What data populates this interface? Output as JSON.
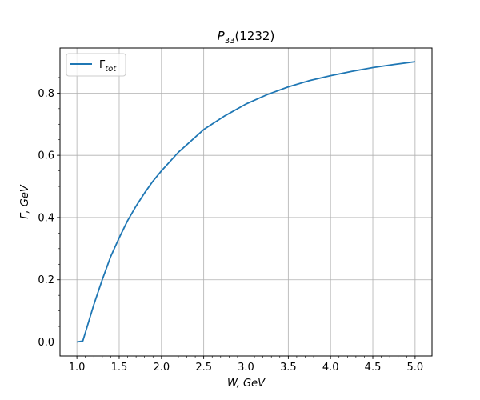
{
  "chart_data": {
    "type": "line",
    "title": "P33(1232)",
    "title_main": "P",
    "title_sub": "33",
    "title_rest": "(1232)",
    "xlabel": "W, GeV",
    "ylabel": "Γ,  GeV",
    "xlim": [
      0.8,
      5.2
    ],
    "ylim": [
      -0.045,
      0.945
    ],
    "xticks": [
      1.0,
      1.5,
      2.0,
      2.5,
      3.0,
      3.5,
      4.0,
      4.5,
      5.0
    ],
    "xtick_labels": [
      "1.0",
      "1.5",
      "2.0",
      "2.5",
      "3.0",
      "3.5",
      "4.0",
      "4.5",
      "5.0"
    ],
    "yticks": [
      0.0,
      0.2,
      0.4,
      0.6,
      0.8
    ],
    "ytick_labels": [
      "0.0",
      "0.2",
      "0.4",
      "0.6",
      "0.8"
    ],
    "grid": true,
    "legend_position": "top-left",
    "series": [
      {
        "name": "Γtot",
        "name_main": "Γ",
        "name_sub": "tot",
        "color": "#1f77b4",
        "x": [
          1.0,
          1.07,
          1.1,
          1.15,
          1.2,
          1.3,
          1.4,
          1.5,
          1.6,
          1.7,
          1.8,
          1.9,
          2.0,
          2.2,
          2.5,
          2.75,
          3.0,
          3.25,
          3.5,
          3.75,
          4.0,
          4.25,
          4.5,
          4.75,
          5.0
        ],
        "y": [
          0.0,
          0.003,
          0.03,
          0.075,
          0.12,
          0.2,
          0.275,
          0.335,
          0.39,
          0.437,
          0.479,
          0.517,
          0.55,
          0.61,
          0.683,
          0.727,
          0.765,
          0.795,
          0.82,
          0.84,
          0.856,
          0.87,
          0.882,
          0.892,
          0.901
        ]
      }
    ]
  }
}
